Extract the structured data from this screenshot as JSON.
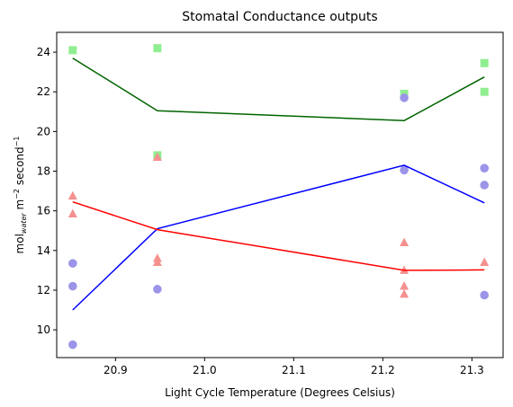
{
  "chart_data": {
    "type": "scatter",
    "title": "Stomatal Conductance outputs",
    "xlabel": "Light Cycle Temperature (Degrees Celsius)",
    "ylabel": {
      "main": "mol",
      "sub": "water",
      "rest1": " m",
      "sup1": "−2",
      "rest2": " second",
      "sup2": "−1"
    },
    "xlim": [
      20.834,
      21.335
    ],
    "ylim": [
      8.6,
      25.0
    ],
    "xticks": [
      20.9,
      21.0,
      21.1,
      21.2,
      21.3
    ],
    "xtick_labels": [
      "20.9",
      "21.0",
      "21.1",
      "21.2",
      "21.3"
    ],
    "yticks": [
      10,
      12,
      14,
      16,
      18,
      20,
      22,
      24
    ],
    "ytick_labels": [
      "10",
      "12",
      "14",
      "16",
      "18",
      "20",
      "22",
      "24"
    ],
    "grid": false,
    "legend": "none",
    "series": [
      {
        "marker": "square",
        "color": "#90ee90",
        "line_color": "#006400",
        "points": [
          [
            20.852,
            24.1
          ],
          [
            20.947,
            24.2
          ],
          [
            20.947,
            18.8
          ],
          [
            21.224,
            21.9
          ],
          [
            21.314,
            23.45
          ],
          [
            21.314,
            22.0
          ]
        ],
        "line": [
          [
            20.852,
            23.7
          ],
          [
            20.947,
            21.05
          ],
          [
            21.224,
            20.55
          ],
          [
            21.314,
            22.75
          ]
        ]
      },
      {
        "marker": "circle",
        "color": "#9b94e8",
        "line_color": "#0000ff",
        "points": [
          [
            20.852,
            13.35
          ],
          [
            20.852,
            12.2
          ],
          [
            20.852,
            9.25
          ],
          [
            20.947,
            12.05
          ],
          [
            21.224,
            21.7
          ],
          [
            21.224,
            18.05
          ],
          [
            21.314,
            18.15
          ],
          [
            21.314,
            17.3
          ],
          [
            21.314,
            11.75
          ]
        ],
        "line": [
          [
            20.852,
            11.0
          ],
          [
            20.947,
            15.1
          ],
          [
            21.224,
            18.3
          ],
          [
            21.314,
            16.4
          ]
        ]
      },
      {
        "marker": "triangle",
        "color": "#f4918f",
        "line_color": "#ff0000",
        "points": [
          [
            20.852,
            16.75
          ],
          [
            20.852,
            15.85
          ],
          [
            20.947,
            18.7
          ],
          [
            20.947,
            13.6
          ],
          [
            20.947,
            13.4
          ],
          [
            21.224,
            14.4
          ],
          [
            21.224,
            13.0
          ],
          [
            21.224,
            12.2
          ],
          [
            21.224,
            11.8
          ],
          [
            21.314,
            13.4
          ]
        ],
        "line": [
          [
            20.852,
            16.45
          ],
          [
            20.947,
            15.05
          ],
          [
            21.224,
            13.0
          ],
          [
            21.314,
            13.02
          ]
        ]
      }
    ]
  }
}
